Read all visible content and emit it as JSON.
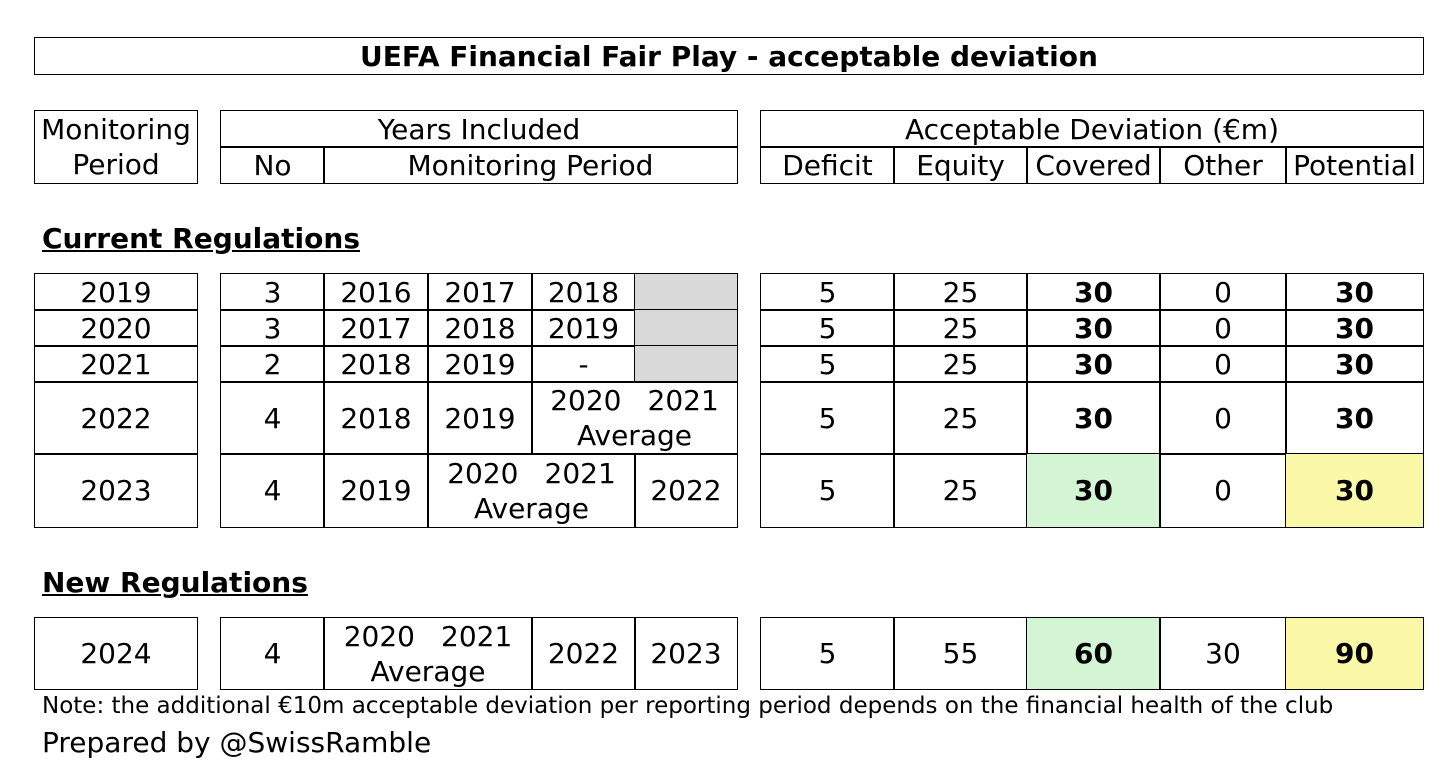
{
  "title": "UEFA Financial Fair Play - acceptable deviation",
  "headers": {
    "monitoring_period_1": "Monitoring",
    "monitoring_period_2": "Period",
    "years_included": "Years Included",
    "no": "No",
    "monitoring_period": "Monitoring Period",
    "acceptable_deviation": "Acceptable Deviation (€m)",
    "deficit": "Deficit",
    "equity": "Equity",
    "covered": "Covered",
    "other": "Other",
    "potential": "Potential"
  },
  "sections": {
    "current": "Current Regulations",
    "new": "New Regulations"
  },
  "rows": [
    {
      "period": "2019",
      "no": "3",
      "y1": "2016",
      "y2": "2017",
      "y3": "2018",
      "deficit": "5",
      "equity": "25",
      "covered": "30",
      "other": "0",
      "potential": "30"
    },
    {
      "period": "2020",
      "no": "3",
      "y1": "2017",
      "y2": "2018",
      "y3": "2019",
      "deficit": "5",
      "equity": "25",
      "covered": "30",
      "other": "0",
      "potential": "30"
    },
    {
      "period": "2021",
      "no": "2",
      "y1": "2018",
      "y2": "2019",
      "y3": "-",
      "deficit": "5",
      "equity": "25",
      "covered": "30",
      "other": "0",
      "potential": "30"
    },
    {
      "period": "2022",
      "no": "4",
      "y1": "2018",
      "y2": "2019",
      "avg_a": "2020",
      "avg_b": "2021",
      "avg_label": "Average",
      "deficit": "5",
      "equity": "25",
      "covered": "30",
      "other": "0",
      "potential": "30"
    },
    {
      "period": "2023",
      "no": "4",
      "y1": "2019",
      "avg_a": "2020",
      "avg_b": "2021",
      "avg_label": "Average",
      "y4": "2022",
      "deficit": "5",
      "equity": "25",
      "covered": "30",
      "other": "0",
      "potential": "30"
    },
    {
      "period": "2024",
      "no": "4",
      "avg_a": "2020",
      "avg_b": "2021",
      "avg_label": "Average",
      "y3": "2022",
      "y4": "2023",
      "deficit": "5",
      "equity": "55",
      "covered": "60",
      "other": "30",
      "potential": "90"
    }
  ],
  "note": "Note: the additional €10m acceptable deviation per reporting period depends on the financial health of the club",
  "credit": "Prepared by @SwissRamble",
  "colors": {
    "grey": "#d9d9d9",
    "green": "#d4f5d4",
    "yellow": "#fbf8a8"
  }
}
